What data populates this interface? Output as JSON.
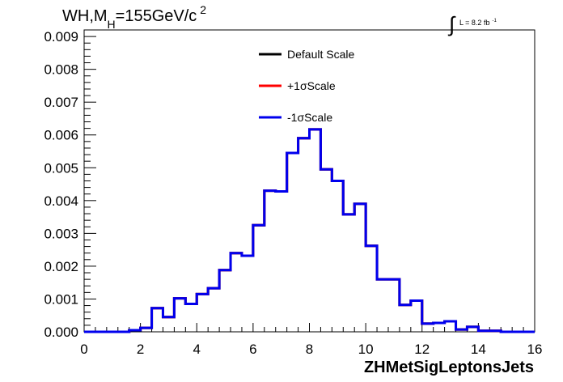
{
  "chart_data": {
    "type": "line",
    "title": "WH,M",
    "title_sub": "H",
    "title_tail": "=155GeV/c",
    "title_sup": "2",
    "lumi_label": "L = 8.2 fb",
    "lumi_sup": "-1",
    "xlabel": "ZHMetSigLeptonsJets",
    "ylabel": "",
    "xlim": [
      0,
      16
    ],
    "ylim": [
      0,
      0.0092
    ],
    "x_ticks": [
      "0",
      "2",
      "4",
      "6",
      "8",
      "10",
      "12",
      "14",
      "16"
    ],
    "y_ticks": [
      "0.000",
      "0.001",
      "0.002",
      "0.003",
      "0.004",
      "0.005",
      "0.006",
      "0.007",
      "0.008",
      "0.009"
    ],
    "grid": false,
    "legend_position": "top-center",
    "bin_edges": [
      0,
      0.4,
      0.8,
      1.2,
      1.6,
      2.0,
      2.4,
      2.8,
      3.2,
      3.6,
      4.0,
      4.4,
      4.8,
      5.2,
      5.6,
      6.0,
      6.4,
      6.8,
      7.2,
      7.6,
      8.0,
      8.4,
      8.8,
      9.2,
      9.6,
      10.0,
      10.4,
      10.8,
      11.2,
      11.6,
      12.0,
      12.4,
      12.8,
      13.2,
      13.6,
      14.0,
      14.4,
      14.8,
      15.2,
      15.6,
      16.0
    ],
    "series": [
      {
        "name": "Default Scale",
        "color": "#000000",
        "values": [
          0,
          0,
          0,
          0,
          5e-05,
          0.00012,
          0.00072,
          0.00045,
          0.00102,
          0.00085,
          0.00115,
          0.00133,
          0.00188,
          0.0024,
          0.00232,
          0.00325,
          0.0043,
          0.00428,
          0.00545,
          0.0059,
          0.00617,
          0.00495,
          0.0046,
          0.00358,
          0.0039,
          0.00262,
          0.0016,
          0.0016,
          0.00082,
          0.00095,
          0.00025,
          0.00027,
          0.00032,
          7e-05,
          0.00015,
          3e-05,
          3e-05,
          0,
          0,
          0
        ]
      },
      {
        "name": "+1σScale",
        "color": "#ff0000",
        "values": [
          0,
          0,
          0,
          0,
          5e-05,
          0.00012,
          0.00072,
          0.00045,
          0.00102,
          0.00085,
          0.00115,
          0.00133,
          0.00188,
          0.0024,
          0.00232,
          0.00325,
          0.0043,
          0.00428,
          0.00545,
          0.0059,
          0.00617,
          0.00495,
          0.0046,
          0.00358,
          0.0039,
          0.00262,
          0.0016,
          0.0016,
          0.00082,
          0.00095,
          0.00025,
          0.00027,
          0.00032,
          7e-05,
          0.00015,
          3e-05,
          3e-05,
          0,
          0,
          0
        ]
      },
      {
        "name": "-1σScale",
        "color": "#0000ee",
        "values": [
          0,
          0,
          0,
          0,
          5e-05,
          0.00012,
          0.00072,
          0.00045,
          0.00102,
          0.00085,
          0.00115,
          0.00133,
          0.00188,
          0.0024,
          0.00232,
          0.00325,
          0.0043,
          0.00428,
          0.00545,
          0.0059,
          0.00617,
          0.00495,
          0.0046,
          0.00358,
          0.0039,
          0.00262,
          0.0016,
          0.0016,
          0.00082,
          0.00095,
          0.00025,
          0.00027,
          0.00032,
          7e-05,
          0.00015,
          3e-05,
          3e-05,
          0,
          0,
          0
        ]
      }
    ]
  }
}
